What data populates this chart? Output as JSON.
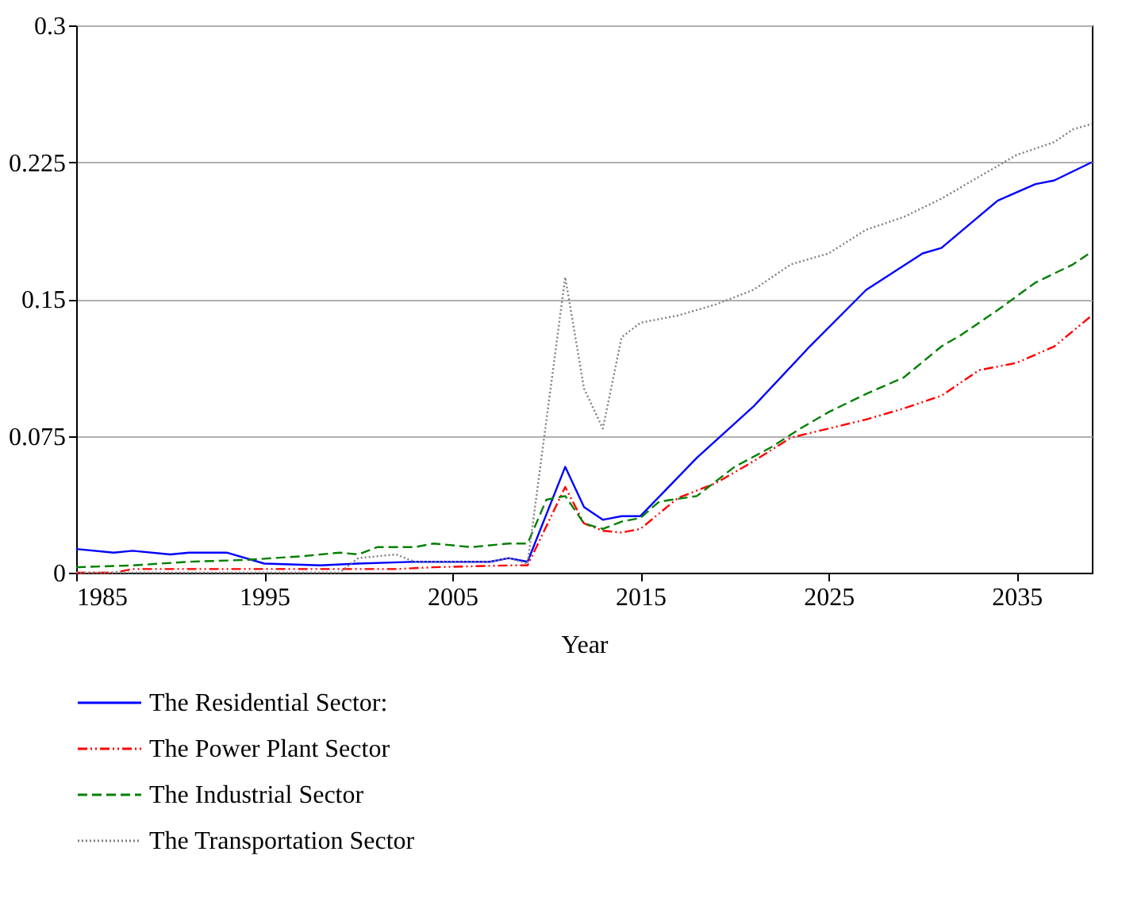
{
  "chart_data": {
    "type": "line",
    "xlabel": "Year",
    "xlim": [
      1985,
      2039
    ],
    "xticks": [
      1985,
      1995,
      2005,
      2015,
      2025,
      2035
    ],
    "ylim": [
      0,
      0.3
    ],
    "yticks": [
      0,
      0.075,
      0.15,
      0.225,
      0.3
    ],
    "grid": "y",
    "legend": "bottom",
    "marker": "none",
    "series": [
      {
        "name": "The Residential Sector:",
        "color": "#0000ff",
        "line_style": "solid",
        "x": [
          1985,
          1987,
          1988,
          1990,
          1991,
          1993,
          1995,
          1998,
          2000,
          2003,
          2004,
          2007,
          2008,
          2009,
          2011,
          2012,
          2013,
          2014,
          2015,
          2018,
          2021,
          2024,
          2027,
          2030,
          2031,
          2034,
          2036,
          2037,
          2039
        ],
        "values": [
          0.013,
          0.011,
          0.012,
          0.01,
          0.011,
          0.011,
          0.005,
          0.004,
          0.005,
          0.006,
          0.006,
          0.006,
          0.008,
          0.006,
          0.058,
          0.036,
          0.029,
          0.031,
          0.031,
          0.063,
          0.091,
          0.124,
          0.155,
          0.175,
          0.178,
          0.204,
          0.213,
          0.215,
          0.225
        ]
      },
      {
        "name": "The Power Plant Sector",
        "color": "#ff0000",
        "line_style": "dashdot",
        "x": [
          1985,
          1987,
          1988,
          2002,
          2004,
          2008,
          2009,
          2011,
          2012,
          2013,
          2014,
          2015,
          2017,
          2019,
          2021,
          2023,
          2025,
          2027,
          2029,
          2031,
          2033,
          2035,
          2037,
          2039
        ],
        "values": [
          0,
          0,
          0.002,
          0.002,
          0.003,
          0.004,
          0.004,
          0.047,
          0.027,
          0.023,
          0.022,
          0.024,
          0.041,
          0.049,
          0.061,
          0.074,
          0.079,
          0.084,
          0.09,
          0.097,
          0.111,
          0.115,
          0.124,
          0.141
        ]
      },
      {
        "name": "The Industrial Sector",
        "color": "#008000",
        "line_style": "dashed",
        "x": [
          1985,
          1988,
          1991,
          1994,
          1997,
          1999,
          2000,
          2001,
          2003,
          2004,
          2006,
          2008,
          2009,
          2010,
          2011,
          2012,
          2013,
          2014,
          2015,
          2016,
          2018,
          2020,
          2022,
          2023.5,
          2025,
          2027,
          2029,
          2031,
          2032,
          2034,
          2036,
          2038,
          2039
        ],
        "values": [
          0.003,
          0.004,
          0.006,
          0.007,
          0.009,
          0.011,
          0.01,
          0.014,
          0.014,
          0.016,
          0.014,
          0.016,
          0.016,
          0.04,
          0.042,
          0.027,
          0.024,
          0.028,
          0.03,
          0.039,
          0.042,
          0.058,
          0.069,
          0.079,
          0.088,
          0.098,
          0.107,
          0.124,
          0.13,
          0.144,
          0.159,
          0.169,
          0.176
        ]
      },
      {
        "name": "The Transportation Sector",
        "color": "#808080",
        "line_style": "dotted",
        "x": [
          1985,
          1999,
          2000,
          2002,
          2003,
          2007,
          2008,
          2009,
          2011,
          2012,
          2013,
          2014,
          2015,
          2017,
          2019,
          2021,
          2023,
          2025,
          2027,
          2029,
          2031,
          2033,
          2035,
          2037,
          2038,
          2039
        ],
        "values": [
          0,
          0,
          0.008,
          0.01,
          0.006,
          0.006,
          0.008,
          0.005,
          0.162,
          0.101,
          0.079,
          0.129,
          0.137,
          0.141,
          0.147,
          0.155,
          0.169,
          0.175,
          0.188,
          0.195,
          0.205,
          0.217,
          0.229,
          0.236,
          0.243,
          0.246
        ]
      }
    ]
  }
}
